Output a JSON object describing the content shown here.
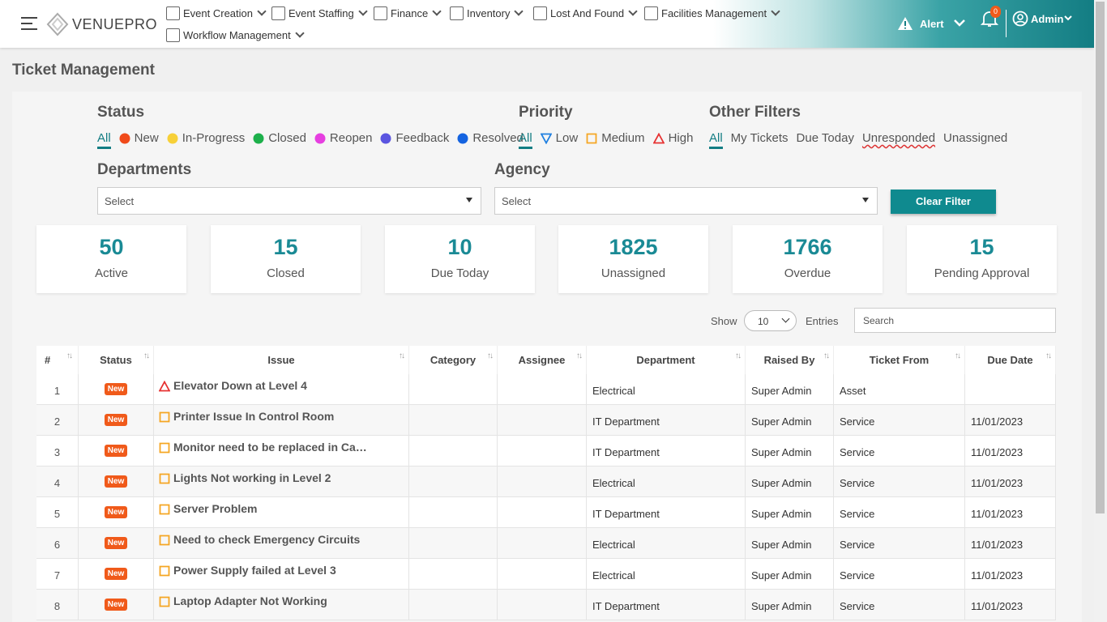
{
  "header": {
    "brand": "VENUEPRO",
    "nav": [
      "Event Creation",
      "Event Staffing",
      "Finance",
      "Inventory",
      "Lost And Found",
      "Facilities Management",
      "Workflow Management"
    ],
    "alert": "Alert",
    "notification_count": 0,
    "user": "Admin"
  },
  "page_title": "Ticket Management",
  "filters": {
    "status": {
      "title": "Status",
      "options": [
        {
          "label": "All"
        },
        {
          "label": "New",
          "color": "#f04a1a"
        },
        {
          "label": "In-Progress",
          "color": "#f7d038"
        },
        {
          "label": "Closed",
          "color": "#1db04b"
        },
        {
          "label": "Reopen",
          "color": "#e63fe0"
        },
        {
          "label": "Feedback",
          "color": "#5b55e0"
        },
        {
          "label": "Resolved",
          "color": "#1463e0"
        }
      ]
    },
    "priority": {
      "title": "Priority",
      "options": [
        {
          "label": "All"
        },
        {
          "label": "Low",
          "icon": "down-triangle",
          "color": "#1e7fe0"
        },
        {
          "label": "Medium",
          "icon": "square",
          "color": "#f5a623"
        },
        {
          "label": "High",
          "icon": "triangle",
          "color": "#e63030"
        }
      ]
    },
    "other": {
      "title": "Other Filters",
      "options": [
        {
          "label": "All"
        },
        {
          "label": "My Tickets"
        },
        {
          "label": "Due Today"
        },
        {
          "label": "Unresponded"
        },
        {
          "label": "Unassigned"
        }
      ]
    },
    "departments": {
      "title": "Departments",
      "placeholder": "Select"
    },
    "agency": {
      "title": "Agency",
      "placeholder": "Select"
    },
    "clear": "Clear Filter"
  },
  "stats": [
    {
      "value": 50,
      "label": "Active"
    },
    {
      "value": 15,
      "label": "Closed"
    },
    {
      "value": 10,
      "label": "Due Today"
    },
    {
      "value": 1825,
      "label": "Unassigned"
    },
    {
      "value": 1766,
      "label": "Overdue"
    },
    {
      "value": 15,
      "label": "Pending Approval"
    }
  ],
  "table_controls": {
    "show": "Show",
    "page_size": 10,
    "entries": "Entries",
    "search": "Search"
  },
  "table": {
    "columns": [
      "#",
      "Status",
      "Issue",
      "Category",
      "Assignee",
      "Department",
      "Raised By",
      "Ticket From",
      "Due Date"
    ],
    "rows": [
      {
        "num": 1,
        "status": "New",
        "priority": "High",
        "issue": "Elevator Down at Level 4",
        "department": "Electrical",
        "raised_by": "Super Admin",
        "ticket_from": "Asset"
      },
      {
        "num": 2,
        "status": "New",
        "priority": "Medium",
        "issue": "Printer Issue In Control Room",
        "department": "IT Department",
        "raised_by": "Super Admin",
        "ticket_from": "Service",
        "due_date": "11/01/2023"
      },
      {
        "num": 3,
        "status": "New",
        "priority": "Medium",
        "issue": "Monitor need to be replaced in Ca…",
        "department": "IT Department",
        "raised_by": "Super Admin",
        "ticket_from": "Service",
        "due_date": "11/01/2023"
      },
      {
        "num": 4,
        "status": "New",
        "priority": "Medium",
        "issue": "Lights Not working in Level 2",
        "department": "Electrical",
        "raised_by": "Super Admin",
        "ticket_from": "Service",
        "due_date": "11/01/2023"
      },
      {
        "num": 5,
        "status": "New",
        "priority": "Medium",
        "issue": "Server Problem",
        "department": "IT Department",
        "raised_by": "Super Admin",
        "ticket_from": "Service",
        "due_date": "11/01/2023"
      },
      {
        "num": 6,
        "status": "New",
        "priority": "Medium",
        "issue": "Need to check Emergency Circuits",
        "department": "Electrical",
        "raised_by": "Super Admin",
        "ticket_from": "Service",
        "due_date": "11/01/2023"
      },
      {
        "num": 7,
        "status": "New",
        "priority": "Medium",
        "issue": "Power Supply failed at Level 3",
        "department": "Electrical",
        "raised_by": "Super Admin",
        "ticket_from": "Service",
        "due_date": "11/01/2023"
      },
      {
        "num": 8,
        "status": "New",
        "priority": "Medium",
        "issue": "Laptop Adapter Not Working",
        "department": "IT Department",
        "raised_by": "Super Admin",
        "ticket_from": "Service",
        "due_date": "11/01/2023"
      }
    ]
  }
}
